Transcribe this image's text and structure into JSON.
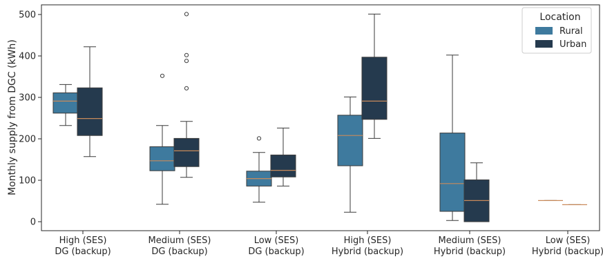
{
  "chart_data": {
    "type": "box",
    "ylabel": "Monthly supply from DGC (kWh)",
    "ylim": [
      -25,
      525
    ],
    "yticks": [
      0,
      100,
      200,
      300,
      400,
      500
    ],
    "categories": [
      [
        "High (SES)",
        "DG (backup)"
      ],
      [
        "Medium (SES)",
        "DG (backup)"
      ],
      [
        "Low (SES)",
        "DG (backup)"
      ],
      [
        "High (SES)",
        "Hybrid (backup)"
      ],
      [
        "Medium (SES)",
        "Hybrid (backup)"
      ],
      [
        "Low (SES)",
        "Hybrid (backup)"
      ]
    ],
    "legend": {
      "title": "Location",
      "placement": "top-right",
      "entries": [
        {
          "label": "Rural",
          "color": "#3e7a9e"
        },
        {
          "label": "Urban",
          "color": "#253a4e"
        }
      ]
    },
    "colors": {
      "Rural": "#3e7a9e",
      "Urban": "#253a4e",
      "median": "#c98a5a"
    },
    "series": [
      {
        "name": "Rural",
        "boxes": [
          {
            "whisker_low": 232,
            "q1": 262,
            "median": 291,
            "q3": 311,
            "whisker_high": 331,
            "outliers": []
          },
          {
            "whisker_low": 42,
            "q1": 123,
            "median": 147,
            "q3": 181,
            "whisker_high": 232,
            "outliers": [
              352
            ]
          },
          {
            "whisker_low": 47,
            "q1": 86,
            "median": 104,
            "q3": 122,
            "whisker_high": 167,
            "outliers": [
              201
            ]
          },
          {
            "whisker_low": 23,
            "q1": 135,
            "median": 208,
            "q3": 257,
            "whisker_high": 301,
            "outliers": []
          },
          {
            "whisker_low": 3,
            "q1": 25,
            "median": 92,
            "q3": 214,
            "whisker_high": 402,
            "outliers": []
          },
          {
            "whisker_low": 51,
            "q1": 51,
            "median": 51,
            "q3": 51,
            "whisker_high": 51,
            "outliers": []
          }
        ]
      },
      {
        "name": "Urban",
        "boxes": [
          {
            "whisker_low": 157,
            "q1": 208,
            "median": 249,
            "q3": 323,
            "whisker_high": 422,
            "outliers": []
          },
          {
            "whisker_low": 107,
            "q1": 133,
            "median": 171,
            "q3": 201,
            "whisker_high": 242,
            "outliers": [
              322,
              388,
              402,
              501
            ]
          },
          {
            "whisker_low": 86,
            "q1": 108,
            "median": 124,
            "q3": 161,
            "whisker_high": 226,
            "outliers": []
          },
          {
            "whisker_low": 201,
            "q1": 247,
            "median": 291,
            "q3": 397,
            "whisker_high": 501,
            "outliers": []
          },
          {
            "whisker_low": 0,
            "q1": 0,
            "median": 51,
            "q3": 101,
            "whisker_high": 142,
            "outliers": []
          },
          {
            "whisker_low": 41,
            "q1": 41,
            "median": 41,
            "q3": 41,
            "whisker_high": 41,
            "outliers": []
          }
        ]
      }
    ]
  }
}
